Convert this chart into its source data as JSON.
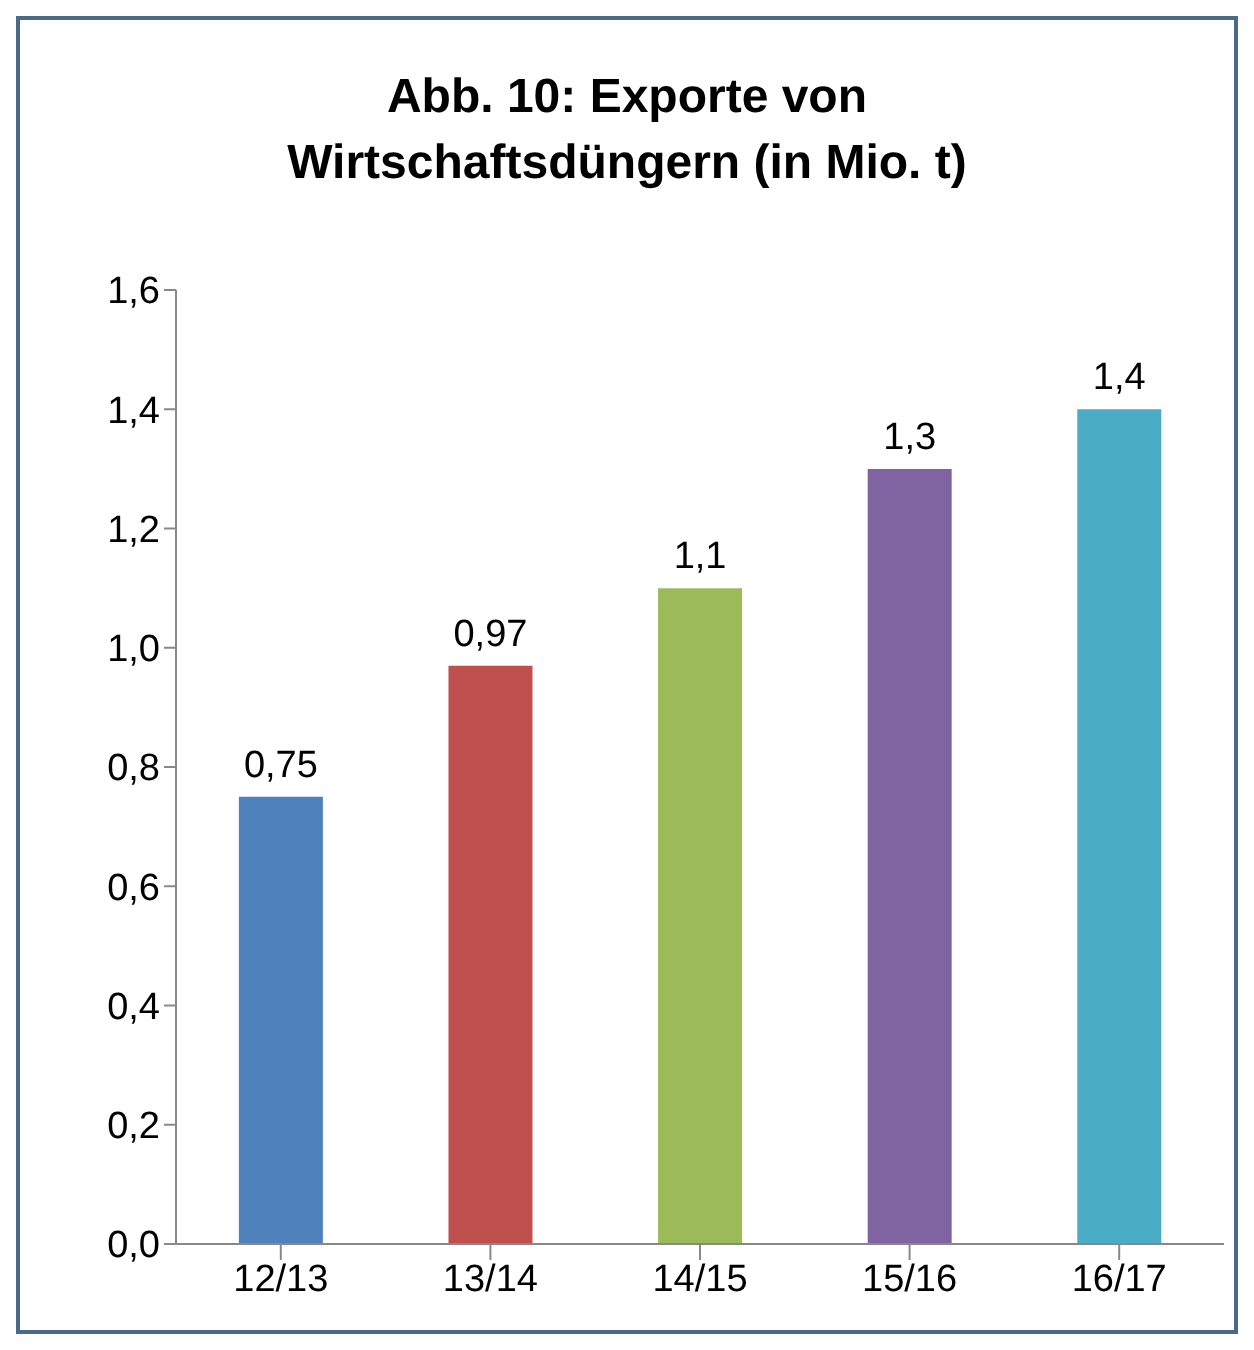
{
  "chart_data": {
    "type": "bar",
    "title": "Abb. 10: Exporte von Wirtschaftsdüngern (in Mio. t)",
    "categories": [
      "12/13",
      "13/14",
      "14/15",
      "15/16",
      "16/17"
    ],
    "values": [
      0.75,
      0.97,
      1.1,
      1.3,
      1.4
    ],
    "value_labels": [
      "0,75",
      "0,97",
      "1,1",
      "1,3",
      "1,4"
    ],
    "colors": [
      "#4f81bd",
      "#c0504d",
      "#9bbb59",
      "#8064a2",
      "#4bacc6"
    ],
    "ylim": [
      0,
      1.6
    ],
    "yticks": [
      {
        "value": 0,
        "label": "0,0"
      },
      {
        "value": 0.2,
        "label": "0,2"
      },
      {
        "value": 0.4,
        "label": "0,4"
      },
      {
        "value": 0.6,
        "label": "0,6"
      },
      {
        "value": 0.8,
        "label": "0,8"
      },
      {
        "value": 1,
        "label": "1,0"
      },
      {
        "value": 1.2,
        "label": "1,2"
      },
      {
        "value": 1.4,
        "label": "1,4"
      },
      {
        "value": 1.6,
        "label": "1,6"
      }
    ],
    "grid": false,
    "legend": false
  }
}
